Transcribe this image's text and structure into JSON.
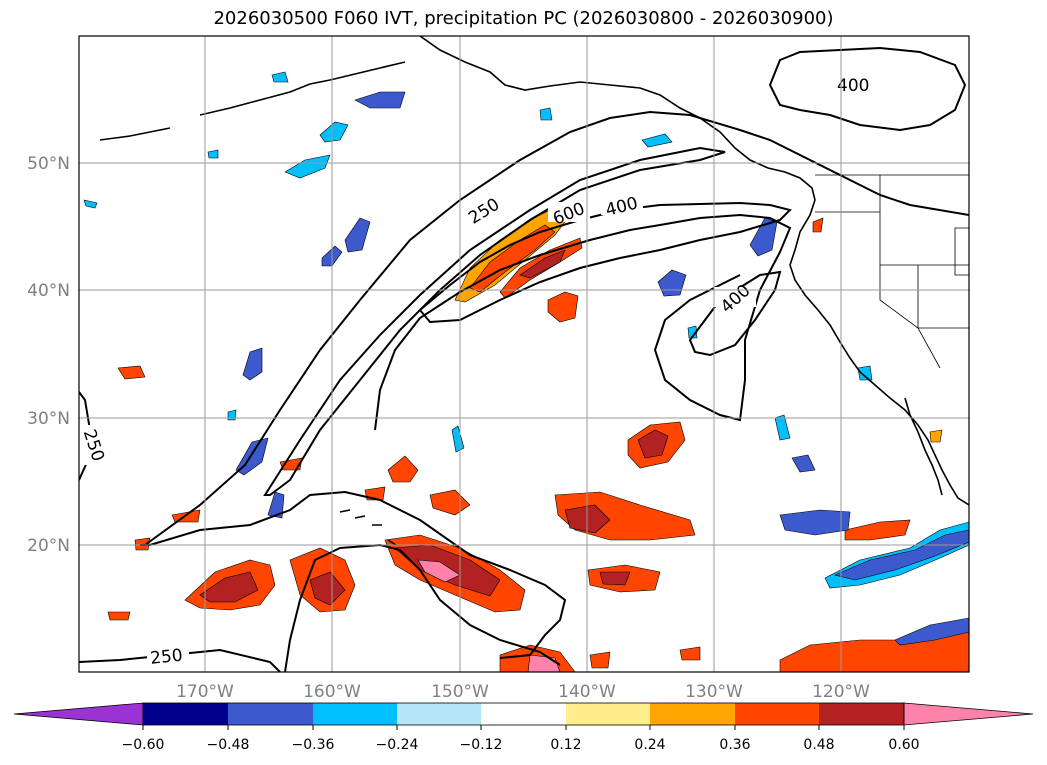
{
  "title": "2026030500 F060 IVT, precipitation PC (2026030800 - 2026030900)",
  "lat_labels": [
    "50°N",
    "40°N",
    "30°N",
    "20°N"
  ],
  "lon_labels": [
    "170°W",
    "160°W",
    "150°W",
    "140°W",
    "130°W",
    "120°W"
  ],
  "contours": {
    "label_250_north": "250",
    "label_600": "600",
    "label_400_north": "400",
    "label_400_ne": "400",
    "label_400_east": "400",
    "label_250_west": "250",
    "label_250_south": "250"
  },
  "colorbar": {
    "ticks": [
      "−0.60",
      "−0.48",
      "−0.36",
      "−0.24",
      "−0.12",
      "0.12",
      "0.24",
      "0.36",
      "0.48",
      "0.60"
    ],
    "colors": [
      "#9b32d2",
      "#00008c",
      "#3c5acd",
      "#00bfff",
      "#b4e6fa",
      "#ffffff",
      "#ffec8b",
      "#ffa500",
      "#ff4500",
      "#b22222",
      "#ff82ab"
    ]
  }
}
